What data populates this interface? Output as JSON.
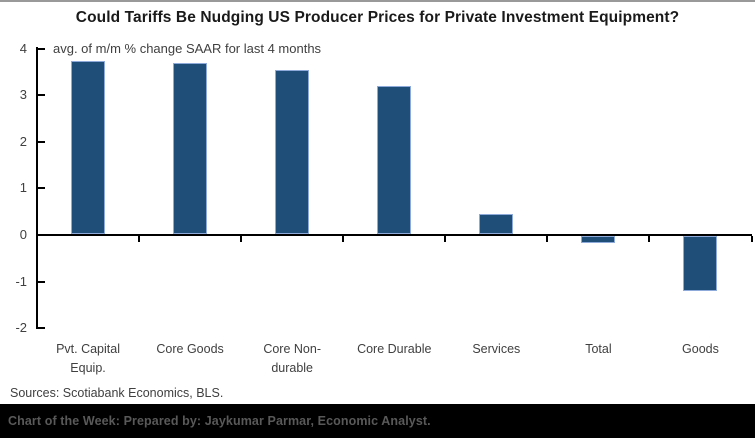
{
  "title": "Could Tariffs Be Nudging US Producer Prices for Private Investment Equipment?",
  "subtitle": "avg. of m/m % change SAAR for last 4 months",
  "sources": "Sources: Scotiabank Economics, BLS.",
  "footer": "Chart of the Week: Prepared by: Jaykumar Parmar, Economic Analyst.",
  "colors": {
    "bar_fill": "#1F4E79",
    "bar_edge": "#8EAADB",
    "axis": "#000000",
    "title_text": "#1a1a1a",
    "label_text": "#404040",
    "footer_bg": "#000000",
    "footer_text": "#595959",
    "top_border": "#999999"
  },
  "chart_data": {
    "type": "bar",
    "title": "Could Tariffs Be Nudging US Producer Prices for Private Investment Equipment?",
    "subtitle": "avg. of m/m % change SAAR for last 4 months",
    "categories": [
      "Pvt. Capital Equip.",
      "Core Goods",
      "Core Non-durable",
      "Core Durable",
      "Services",
      "Total",
      "Goods"
    ],
    "category_label_lines": [
      [
        "Pvt. Capital",
        "Equip."
      ],
      [
        "Core Goods"
      ],
      [
        "Core Non-",
        "durable"
      ],
      [
        "Core Durable"
      ],
      [
        "Services"
      ],
      [
        "Total"
      ],
      [
        "Goods"
      ]
    ],
    "values": [
      3.72,
      3.68,
      3.51,
      3.18,
      0.42,
      -0.16,
      -1.18
    ],
    "xlabel": "",
    "ylabel": "avg. of m/m % change SAAR",
    "ylim": [
      -2,
      4
    ],
    "yticks": [
      -2,
      -1,
      0,
      1,
      2,
      3,
      4
    ],
    "ytick_labels": [
      "-2",
      "-1",
      "0",
      "1",
      "2",
      "3",
      "4"
    ],
    "grid": false,
    "legend": false
  }
}
